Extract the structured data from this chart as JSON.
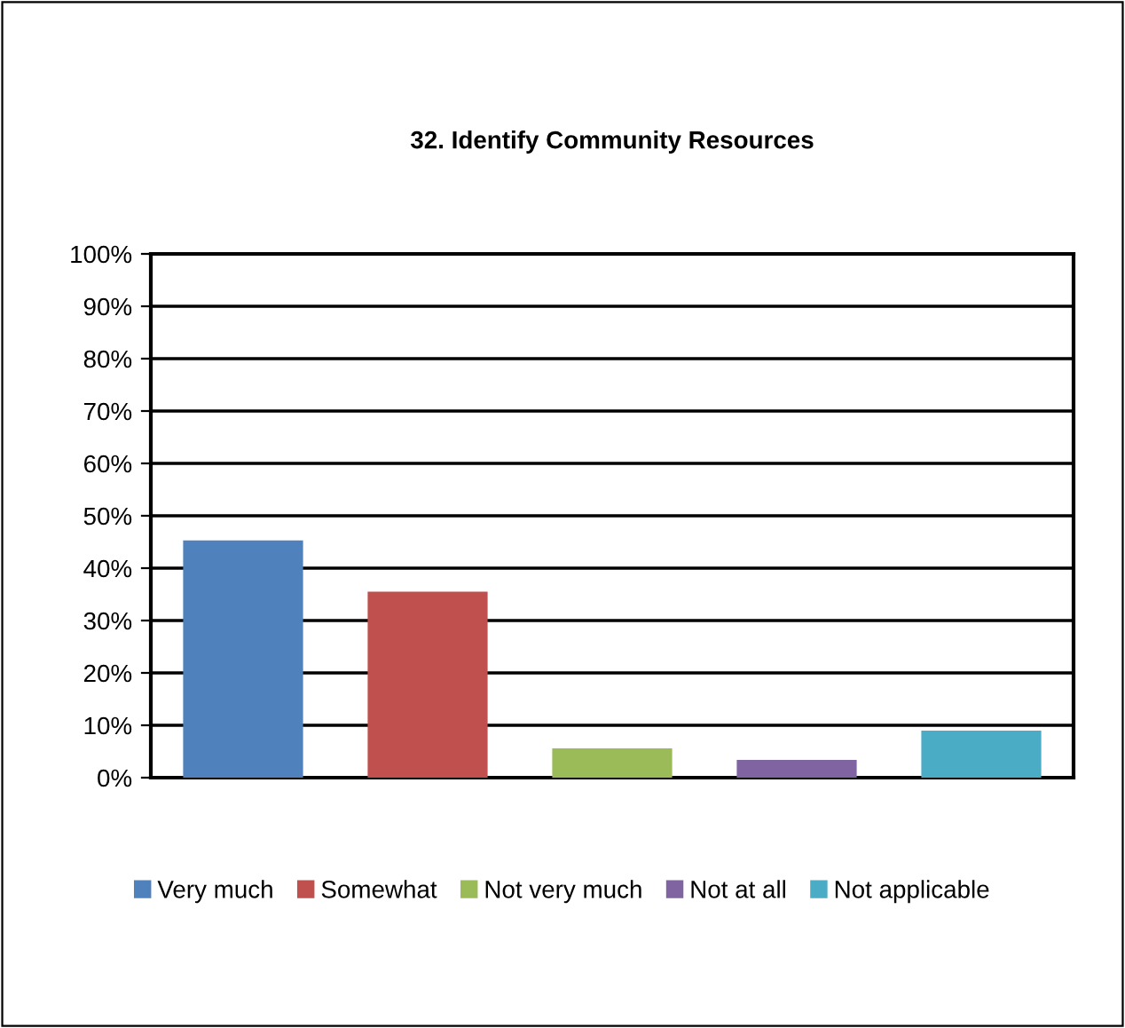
{
  "chart_data": {
    "type": "bar",
    "title": "32. Identify Community Resources",
    "categories": [
      null,
      null,
      null,
      null,
      null
    ],
    "series": [
      {
        "name": "Very much",
        "color": "#4f81bd",
        "values": [
          45.3,
          null,
          null,
          null,
          null
        ]
      },
      {
        "name": "Somewhat",
        "color": "#c0504d",
        "values": [
          null,
          35.5,
          null,
          null,
          null
        ]
      },
      {
        "name": "Not very much",
        "color": "#9bbb59",
        "values": [
          null,
          null,
          5.6,
          null,
          null
        ]
      },
      {
        "name": "Not at all",
        "color": "#8064a2",
        "values": [
          null,
          null,
          null,
          3.4,
          null
        ]
      },
      {
        "name": "Not applicable",
        "color": "#4bacc6",
        "values": [
          null,
          null,
          null,
          null,
          9.0
        ]
      }
    ],
    "ylim": [
      0,
      100
    ],
    "yticks": [
      {
        "value": 0,
        "label": "0%"
      },
      {
        "value": 10,
        "label": "10%"
      },
      {
        "value": 20,
        "label": "20%"
      },
      {
        "value": 30,
        "label": "30%"
      },
      {
        "value": 40,
        "label": "40%"
      },
      {
        "value": 50,
        "label": "50%"
      },
      {
        "value": 60,
        "label": "60%"
      },
      {
        "value": 70,
        "label": "70%"
      },
      {
        "value": 80,
        "label": "80%"
      },
      {
        "value": 90,
        "label": "90%"
      },
      {
        "value": 100,
        "label": "100%"
      }
    ],
    "grid": "y",
    "legend": "bottom",
    "tick_labels": "y"
  }
}
